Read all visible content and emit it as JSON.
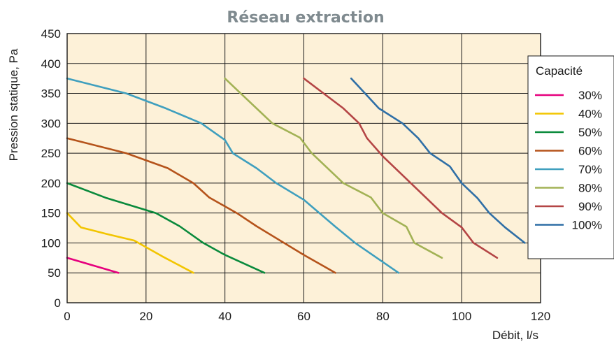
{
  "chart_data": {
    "type": "line",
    "title": "Réseau extraction",
    "xlabel": "Débit, l/s",
    "ylabel": "Pression statique, Pa",
    "xlim": [
      0,
      120
    ],
    "ylim": [
      0,
      450
    ],
    "xticks": [
      "0",
      "20",
      "40",
      "60",
      "80",
      "100",
      "120"
    ],
    "yticks": [
      "0",
      "50",
      "100",
      "150",
      "200",
      "250",
      "300",
      "350",
      "400",
      "450"
    ],
    "grid": true,
    "background": "#fdf1d8",
    "legend": {
      "title": "Capacité",
      "placement": "right"
    },
    "series": [
      {
        "name": "30%",
        "color": "#e6007e",
        "points": [
          [
            0,
            75
          ],
          [
            13,
            50
          ]
        ]
      },
      {
        "name": "40%",
        "color": "#f2c500",
        "points": [
          [
            0,
            150
          ],
          [
            3.5,
            126
          ],
          [
            10,
            115
          ],
          [
            17,
            104
          ],
          [
            24,
            78
          ],
          [
            32,
            50
          ]
        ]
      },
      {
        "name": "50%",
        "color": "#0a8a3c",
        "points": [
          [
            0,
            200
          ],
          [
            10,
            175
          ],
          [
            22.5,
            150
          ],
          [
            28.5,
            128
          ],
          [
            34.5,
            100
          ],
          [
            40,
            80
          ],
          [
            50,
            50
          ]
        ]
      },
      {
        "name": "60%",
        "color": "#b5531b",
        "points": [
          [
            0,
            275
          ],
          [
            15,
            250
          ],
          [
            25.5,
            225
          ],
          [
            32,
            200
          ],
          [
            36,
            176
          ],
          [
            43,
            150
          ],
          [
            48,
            128
          ],
          [
            60,
            80
          ],
          [
            68,
            50
          ]
        ]
      },
      {
        "name": "70%",
        "color": "#3f9fbe",
        "points": [
          [
            0,
            375
          ],
          [
            15,
            350
          ],
          [
            25,
            325
          ],
          [
            34,
            300
          ],
          [
            40,
            272
          ],
          [
            42,
            250
          ],
          [
            48,
            225
          ],
          [
            53,
            200
          ],
          [
            60,
            172
          ],
          [
            68,
            127
          ],
          [
            73,
            100
          ],
          [
            84,
            50
          ]
        ]
      },
      {
        "name": "80%",
        "color": "#a2b255",
        "points": [
          [
            40,
            375
          ],
          [
            44,
            350
          ],
          [
            52,
            300
          ],
          [
            59,
            276
          ],
          [
            62,
            250
          ],
          [
            70,
            200
          ],
          [
            77,
            176
          ],
          [
            80,
            150
          ],
          [
            86,
            127
          ],
          [
            88,
            100
          ],
          [
            95,
            75
          ]
        ]
      },
      {
        "name": "90%",
        "color": "#b44545",
        "points": [
          [
            60,
            375
          ],
          [
            70,
            325
          ],
          [
            74,
            300
          ],
          [
            76,
            275
          ],
          [
            80,
            245
          ],
          [
            95,
            150
          ],
          [
            100,
            126
          ],
          [
            103,
            100
          ],
          [
            109,
            75
          ]
        ]
      },
      {
        "name": "100%",
        "color": "#2f6fa6",
        "points": [
          [
            72,
            375
          ],
          [
            79,
            325
          ],
          [
            85,
            300
          ],
          [
            89,
            275
          ],
          [
            92,
            250
          ],
          [
            97,
            228
          ],
          [
            100,
            200
          ],
          [
            104,
            175
          ],
          [
            107,
            150
          ],
          [
            111,
            126
          ],
          [
            116,
            100
          ]
        ]
      }
    ]
  }
}
